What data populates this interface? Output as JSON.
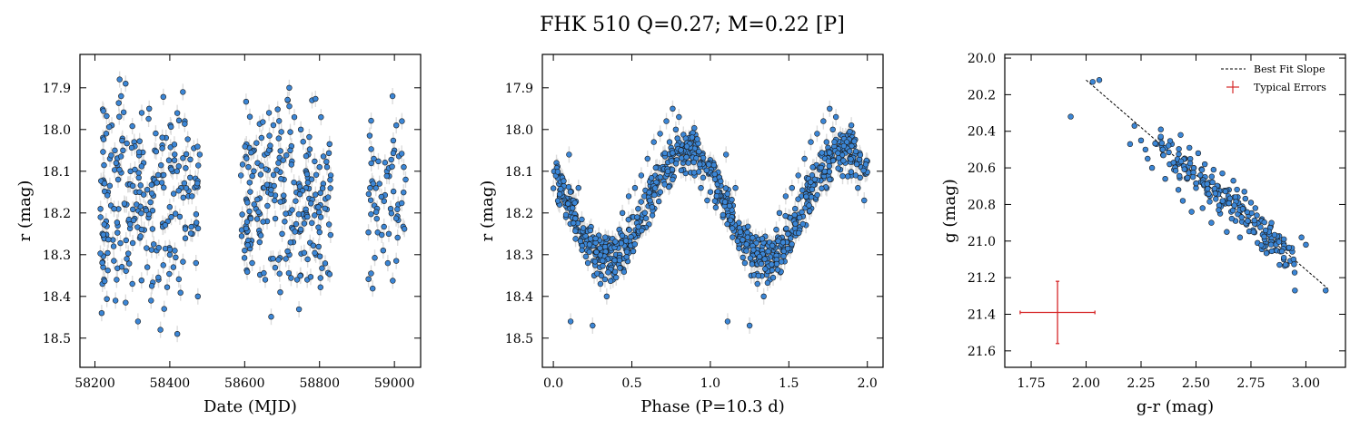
{
  "title": "FHK 510  Q=0.27; M=0.22 [P]",
  "colors": {
    "point": "#3b86d6",
    "edge": "#1a1a1a",
    "errorbar": "#dcdcdc",
    "fit": "#000000",
    "typical": "#d62728"
  },
  "chart_data": [
    {
      "type": "scatter",
      "name": "light-curve",
      "xlabel": "Date (MJD)",
      "ylabel": "r (mag)",
      "xlim": [
        58160,
        59070
      ],
      "ylim": [
        18.57,
        17.82
      ],
      "inverted_y": true,
      "xticks": [
        58200,
        58400,
        58600,
        58800,
        59000
      ],
      "yticks": [
        17.9,
        18.0,
        18.1,
        18.2,
        18.3,
        18.4,
        18.5
      ],
      "xticklabels": [
        "58200",
        "58400",
        "58600",
        "58800",
        "59000"
      ],
      "yticklabels": [
        "17.9",
        "18.0",
        "18.1",
        "18.2",
        "18.3",
        "18.4",
        "18.5"
      ],
      "error_bars": true,
      "observation_windows": [
        [
          58212,
          58480
        ],
        [
          58590,
          58830
        ],
        [
          58930,
          59030
        ]
      ],
      "points": [
        [
          58215,
          18.21
        ],
        [
          58218,
          18.44
        ],
        [
          58220,
          18.37
        ],
        [
          58222,
          18.33
        ],
        [
          58230,
          18.22
        ],
        [
          58235,
          18.15
        ],
        [
          58240,
          18.07
        ],
        [
          58245,
          17.99
        ],
        [
          58250,
          18.28
        ],
        [
          58255,
          18.41
        ],
        [
          58258,
          18.36
        ],
        [
          58262,
          18.12
        ],
        [
          58266,
          17.88
        ],
        [
          58270,
          17.92
        ],
        [
          58275,
          18.05
        ],
        [
          58280,
          18.18
        ],
        [
          58282,
          17.89
        ],
        [
          58285,
          18.31
        ],
        [
          58290,
          18.22
        ],
        [
          58295,
          18.1
        ],
        [
          58300,
          18.37
        ],
        [
          58305,
          18.03
        ],
        [
          58310,
          18.15
        ],
        [
          58315,
          18.46
        ],
        [
          58320,
          18.26
        ],
        [
          58325,
          17.96
        ],
        [
          58330,
          18.08
        ],
        [
          58335,
          18.19
        ],
        [
          58340,
          18.33
        ],
        [
          58345,
          17.95
        ],
        [
          58350,
          18.41
        ],
        [
          58355,
          18.13
        ],
        [
          58360,
          18.05
        ],
        [
          58365,
          18.29
        ],
        [
          58370,
          18.36
        ],
        [
          58375,
          18.48
        ],
        [
          58380,
          18.11
        ],
        [
          58385,
          18.43
        ],
        [
          58390,
          18.02
        ],
        [
          58395,
          18.22
        ],
        [
          58400,
          18.3
        ],
        [
          58420,
          18.49
        ],
        [
          58430,
          18.14
        ],
        [
          58435,
          17.91
        ],
        [
          58440,
          17.98
        ],
        [
          58450,
          18.16
        ],
        [
          58460,
          18.25
        ],
        [
          58470,
          18.32
        ],
        [
          58475,
          18.4
        ],
        [
          58480,
          18.06
        ],
        [
          58590,
          18.11
        ],
        [
          58600,
          18.29
        ],
        [
          58610,
          18.09
        ],
        [
          58615,
          18.21
        ],
        [
          58620,
          18.32
        ],
        [
          58625,
          18.05
        ],
        [
          58630,
          18.19
        ],
        [
          58640,
          18.27
        ],
        [
          58645,
          18.02
        ],
        [
          58650,
          18.14
        ],
        [
          58655,
          18.36
        ],
        [
          58660,
          18.22
        ],
        [
          58665,
          17.96
        ],
        [
          58670,
          18.31
        ],
        [
          58680,
          18.17
        ],
        [
          58690,
          18.08
        ],
        [
          58695,
          18.39
        ],
        [
          58700,
          18.25
        ],
        [
          58705,
          18.12
        ],
        [
          58710,
          18.31
        ],
        [
          58715,
          17.93
        ],
        [
          58720,
          18.2
        ],
        [
          58725,
          18.04
        ],
        [
          58730,
          18.27
        ],
        [
          58740,
          18.36
        ],
        [
          58745,
          18.13
        ],
        [
          58750,
          18.0
        ],
        [
          58760,
          18.21
        ],
        [
          58770,
          18.06
        ],
        [
          58780,
          17.93
        ],
        [
          58790,
          18.3
        ],
        [
          58800,
          18.09
        ],
        [
          58810,
          18.13
        ],
        [
          58820,
          18.09
        ],
        [
          58830,
          18.11
        ],
        [
          58935,
          18.14
        ],
        [
          58945,
          18.07
        ],
        [
          58960,
          18.13
        ],
        [
          58970,
          18.29
        ],
        [
          58980,
          18.1
        ],
        [
          58985,
          18.25
        ],
        [
          58990,
          18.19
        ],
        [
          58995,
          17.92
        ],
        [
          59000,
          18.05
        ],
        [
          59005,
          17.99
        ],
        [
          59010,
          18.18
        ],
        [
          59020,
          17.98
        ],
        [
          59025,
          18.09
        ],
        [
          59030,
          18.12
        ]
      ]
    },
    {
      "type": "scatter",
      "name": "phased",
      "xlabel": "Phase (P=10.3 d)",
      "ylabel": "r (mag)",
      "xlim": [
        -0.07,
        2.1
      ],
      "ylim": [
        18.57,
        17.82
      ],
      "inverted_y": true,
      "xticks": [
        0.0,
        0.5,
        1.0,
        1.5,
        2.0
      ],
      "yticks": [
        17.9,
        18.0,
        18.1,
        18.2,
        18.3,
        18.4,
        18.5
      ],
      "xticklabels": [
        "0.0",
        "0.5",
        "1.0",
        "1.5",
        "2.0"
      ],
      "yticklabels": [
        "17.9",
        "18.0",
        "18.1",
        "18.2",
        "18.3",
        "18.4",
        "18.5"
      ],
      "error_bars": true,
      "points": [
        [
          0.02,
          18.08
        ],
        [
          0.04,
          18.16
        ],
        [
          0.06,
          18.12
        ],
        [
          0.08,
          18.21
        ],
        [
          0.1,
          18.06
        ],
        [
          0.11,
          18.46
        ],
        [
          0.12,
          18.18
        ],
        [
          0.14,
          18.22
        ],
        [
          0.16,
          18.14
        ],
        [
          0.18,
          18.26
        ],
        [
          0.2,
          18.24
        ],
        [
          0.22,
          18.32
        ],
        [
          0.24,
          18.28
        ],
        [
          0.25,
          18.47
        ],
        [
          0.26,
          18.35
        ],
        [
          0.28,
          18.3
        ],
        [
          0.3,
          18.37
        ],
        [
          0.32,
          18.29
        ],
        [
          0.34,
          18.4
        ],
        [
          0.36,
          18.33
        ],
        [
          0.38,
          18.36
        ],
        [
          0.4,
          18.3
        ],
        [
          0.42,
          18.24
        ],
        [
          0.44,
          18.2
        ],
        [
          0.46,
          18.28
        ],
        [
          0.48,
          18.16
        ],
        [
          0.5,
          18.21
        ],
        [
          0.52,
          18.14
        ],
        [
          0.54,
          18.19
        ],
        [
          0.56,
          18.11
        ],
        [
          0.58,
          18.16
        ],
        [
          0.6,
          18.07
        ],
        [
          0.62,
          18.12
        ],
        [
          0.64,
          18.03
        ],
        [
          0.66,
          18.09
        ],
        [
          0.68,
          18.01
        ],
        [
          0.7,
          18.06
        ],
        [
          0.72,
          17.98
        ],
        [
          0.74,
          18.03
        ],
        [
          0.76,
          17.95
        ],
        [
          0.78,
          18.0
        ],
        [
          0.8,
          17.97
        ],
        [
          0.82,
          18.04
        ],
        [
          0.84,
          18.05
        ],
        [
          0.86,
          18.08
        ],
        [
          0.88,
          18.01
        ],
        [
          0.9,
          18.11
        ],
        [
          0.92,
          18.06
        ],
        [
          0.94,
          18.14
        ],
        [
          0.96,
          18.09
        ],
        [
          0.98,
          18.17
        ],
        [
          1.02,
          18.08
        ],
        [
          1.04,
          18.16
        ],
        [
          1.06,
          18.12
        ],
        [
          1.08,
          18.21
        ],
        [
          1.1,
          18.06
        ],
        [
          1.11,
          18.46
        ],
        [
          1.12,
          18.18
        ],
        [
          1.14,
          18.22
        ],
        [
          1.16,
          18.14
        ],
        [
          1.18,
          18.26
        ],
        [
          1.2,
          18.24
        ],
        [
          1.22,
          18.32
        ],
        [
          1.24,
          18.28
        ],
        [
          1.25,
          18.47
        ],
        [
          1.26,
          18.35
        ],
        [
          1.28,
          18.3
        ],
        [
          1.3,
          18.37
        ],
        [
          1.32,
          18.29
        ],
        [
          1.34,
          18.4
        ],
        [
          1.36,
          18.33
        ],
        [
          1.38,
          18.36
        ],
        [
          1.4,
          18.3
        ],
        [
          1.42,
          18.24
        ],
        [
          1.44,
          18.2
        ],
        [
          1.46,
          18.28
        ],
        [
          1.48,
          18.16
        ],
        [
          1.5,
          18.21
        ],
        [
          1.52,
          18.14
        ],
        [
          1.54,
          18.19
        ],
        [
          1.56,
          18.11
        ],
        [
          1.58,
          18.16
        ],
        [
          1.6,
          18.07
        ],
        [
          1.62,
          18.12
        ],
        [
          1.64,
          18.03
        ],
        [
          1.66,
          18.09
        ],
        [
          1.68,
          18.01
        ],
        [
          1.7,
          18.06
        ],
        [
          1.72,
          17.98
        ],
        [
          1.74,
          18.03
        ],
        [
          1.76,
          17.95
        ],
        [
          1.78,
          18.0
        ],
        [
          1.8,
          17.97
        ],
        [
          1.82,
          18.04
        ],
        [
          1.84,
          18.05
        ],
        [
          1.86,
          18.08
        ],
        [
          1.88,
          18.01
        ],
        [
          1.9,
          18.11
        ],
        [
          1.92,
          18.06
        ],
        [
          1.94,
          18.14
        ],
        [
          1.96,
          18.09
        ],
        [
          1.98,
          18.17
        ]
      ]
    },
    {
      "type": "scatter",
      "name": "color-magnitude",
      "xlabel": "g-r (mag)",
      "ylabel": "g (mag)",
      "xlim": [
        1.63,
        3.18
      ],
      "ylim": [
        21.69,
        19.98
      ],
      "inverted_y": true,
      "xticks": [
        1.75,
        2.0,
        2.25,
        2.5,
        2.75,
        3.0
      ],
      "yticks": [
        20.0,
        20.2,
        20.4,
        20.6,
        20.8,
        21.0,
        21.2,
        21.4,
        21.6
      ],
      "xticklabels": [
        "1.75",
        "2.00",
        "2.25",
        "2.50",
        "2.75",
        "3.00"
      ],
      "yticklabels": [
        "20.0",
        "20.2",
        "20.4",
        "20.6",
        "20.8",
        "21.0",
        "21.2",
        "21.4",
        "21.6"
      ],
      "legend": {
        "placement": "top-right",
        "entries": [
          "Best Fit Slope",
          "Typical Errors"
        ]
      },
      "fit_line": [
        [
          2.0,
          20.12
        ],
        [
          3.1,
          21.26
        ]
      ],
      "typical_error": {
        "x": 1.87,
        "y": 21.39,
        "xerr": 0.17,
        "yerr": 0.17
      },
      "points": [
        [
          1.93,
          20.32
        ],
        [
          2.03,
          20.13
        ],
        [
          2.06,
          20.12
        ],
        [
          2.2,
          20.47
        ],
        [
          2.22,
          20.37
        ],
        [
          2.25,
          20.45
        ],
        [
          2.27,
          20.5
        ],
        [
          2.28,
          20.55
        ],
        [
          2.3,
          20.6
        ],
        [
          2.32,
          20.47
        ],
        [
          2.34,
          20.39
        ],
        [
          2.35,
          20.53
        ],
        [
          2.36,
          20.66
        ],
        [
          2.38,
          20.58
        ],
        [
          2.39,
          20.47
        ],
        [
          2.4,
          20.61
        ],
        [
          2.42,
          20.72
        ],
        [
          2.43,
          20.42
        ],
        [
          2.44,
          20.78
        ],
        [
          2.45,
          20.55
        ],
        [
          2.46,
          20.66
        ],
        [
          2.47,
          20.49
        ],
        [
          2.48,
          20.84
        ],
        [
          2.49,
          20.6
        ],
        [
          2.5,
          20.71
        ],
        [
          2.51,
          20.52
        ],
        [
          2.52,
          20.64
        ],
        [
          2.53,
          20.82
        ],
        [
          2.54,
          20.58
        ],
        [
          2.55,
          20.74
        ],
        [
          2.56,
          20.68
        ],
        [
          2.57,
          20.9
        ],
        [
          2.58,
          20.61
        ],
        [
          2.59,
          20.77
        ],
        [
          2.6,
          20.7
        ],
        [
          2.61,
          20.85
        ],
        [
          2.62,
          20.63
        ],
        [
          2.63,
          20.78
        ],
        [
          2.64,
          20.95
        ],
        [
          2.65,
          20.72
        ],
        [
          2.66,
          20.84
        ],
        [
          2.67,
          20.67
        ],
        [
          2.68,
          20.89
        ],
        [
          2.69,
          20.76
        ],
        [
          2.7,
          20.98
        ],
        [
          2.71,
          20.81
        ],
        [
          2.72,
          20.73
        ],
        [
          2.73,
          20.91
        ],
        [
          2.74,
          20.86
        ],
        [
          2.75,
          20.79
        ],
        [
          2.76,
          20.94
        ],
        [
          2.77,
          20.82
        ],
        [
          2.78,
          21.01
        ],
        [
          2.8,
          20.88
        ],
        [
          2.82,
          20.96
        ],
        [
          2.84,
          20.92
        ],
        [
          2.86,
          21.05
        ],
        [
          2.88,
          21.13
        ],
        [
          2.9,
          20.99
        ],
        [
          2.92,
          21.04
        ],
        [
          2.95,
          21.27
        ],
        [
          2.98,
          20.98
        ],
        [
          3.0,
          21.02
        ],
        [
          3.09,
          21.27
        ]
      ]
    }
  ],
  "legend": {
    "fit_label": "Best Fit Slope",
    "errors_label": "Typical Errors"
  }
}
